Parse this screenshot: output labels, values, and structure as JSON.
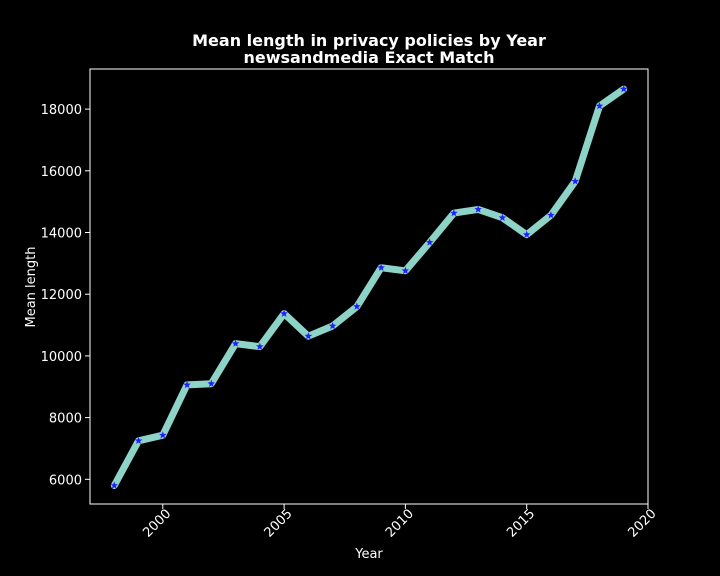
{
  "chart_data": {
    "type": "line",
    "title": "Mean length in privacy policies by Year",
    "subtitle": "newsandmedia Exact Match",
    "xlabel": "Year",
    "ylabel": "Mean length",
    "xlim": [
      1997.0,
      2020.0
    ],
    "ylim": [
      5200,
      19300
    ],
    "x_ticks": [
      2000,
      2005,
      2010,
      2015,
      2020
    ],
    "y_ticks": [
      6000,
      8000,
      10000,
      12000,
      14000,
      16000,
      18000
    ],
    "grid": false,
    "legend": "none",
    "line_color": "#8dd3c7",
    "marker_color": "#1f1fff",
    "background": "#000000",
    "series": [
      {
        "x": [
          1998,
          1999,
          2000,
          2001,
          2002,
          2003,
          2004,
          2005,
          2006,
          2007,
          2008,
          2009,
          2010,
          2011,
          2012,
          2013,
          2014,
          2015,
          2016,
          2017,
          2018,
          2019
        ],
        "values": [
          5800,
          7250,
          7430,
          9060,
          9100,
          10400,
          10300,
          11370,
          10640,
          10970,
          11600,
          12860,
          12760,
          13680,
          14630,
          14750,
          14480,
          13930,
          14560,
          15660,
          18100,
          18650
        ]
      }
    ]
  }
}
